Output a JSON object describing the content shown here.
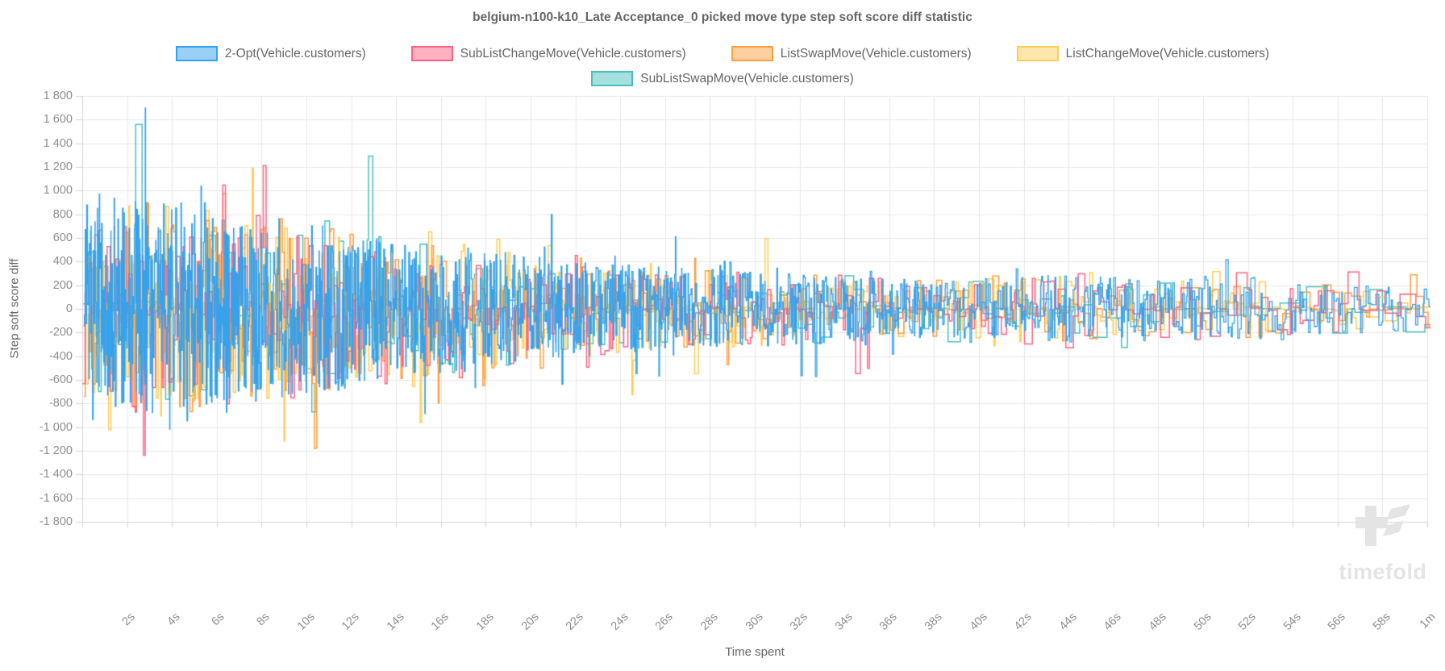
{
  "title": "belgium-n100-k10_Late Acceptance_0 picked move type step soft score diff statistic",
  "axes": {
    "y": {
      "title": "Step soft score diff",
      "ticks": [
        "1 800",
        "1 600",
        "1 400",
        "1 200",
        "1 000",
        "800",
        "600",
        "400",
        "200",
        "0",
        "-200",
        "-400",
        "-600",
        "-800",
        "-1 000",
        "-1 200",
        "-1 400",
        "-1 600",
        "-1 800"
      ],
      "tick_values": [
        1800,
        1600,
        1400,
        1200,
        1000,
        800,
        600,
        400,
        200,
        0,
        -200,
        -400,
        -600,
        -800,
        -1000,
        -1200,
        -1400,
        -1600,
        -1800
      ]
    },
    "x": {
      "title": "Time spent",
      "ticks": [
        "2s",
        "4s",
        "6s",
        "8s",
        "10s",
        "12s",
        "14s",
        "16s",
        "18s",
        "20s",
        "22s",
        "24s",
        "26s",
        "28s",
        "30s",
        "32s",
        "34s",
        "36s",
        "38s",
        "40s",
        "42s",
        "44s",
        "46s",
        "48s",
        "50s",
        "52s",
        "54s",
        "56s",
        "58s",
        "1m"
      ],
      "tick_seconds": [
        2,
        4,
        6,
        8,
        10,
        12,
        14,
        16,
        18,
        20,
        22,
        24,
        26,
        28,
        30,
        32,
        34,
        36,
        38,
        40,
        42,
        44,
        46,
        48,
        50,
        52,
        54,
        56,
        58,
        60
      ]
    }
  },
  "watermark": {
    "text": "timefold"
  },
  "chart_data": {
    "type": "line",
    "stepped": true,
    "grid": true,
    "legend_position": "top",
    "title": "belgium-n100-k10_Late Acceptance_0 picked move type step soft score diff statistic",
    "xlabel": "Time spent",
    "ylabel": "Step soft score diff",
    "xlim_seconds": [
      0,
      60.3
    ],
    "ylim": [
      -1800,
      1800
    ],
    "y_tick_step": 200,
    "series": [
      {
        "label": "2-Opt(Vehicle.customers)",
        "color": "#36A2EB",
        "fill": "#9AD0F5",
        "rate_start": 46,
        "rate_end": 9,
        "seed": 11
      },
      {
        "label": "SubListChangeMove(Vehicle.customers)",
        "color": "#FF6384",
        "fill": "#FFB1C1",
        "rate_start": 11,
        "rate_end": 2.2,
        "seed": 22
      },
      {
        "label": "ListSwapMove(Vehicle.customers)",
        "color": "#FF9F40",
        "fill": "#FFCF9F",
        "rate_start": 13,
        "rate_end": 2.6,
        "seed": 33
      },
      {
        "label": "ListChangeMove(Vehicle.customers)",
        "color": "#FFCD56",
        "fill": "#FFE6AA",
        "rate_start": 14,
        "rate_end": 2.9,
        "seed": 44
      },
      {
        "label": "SubListSwapMove(Vehicle.customers)",
        "color": "#4BC0C0",
        "fill": "#A5DFDF",
        "rate_start": 6,
        "rate_end": 1.4,
        "seed": 55
      }
    ],
    "amplitude_envelope": {
      "t_seconds": [
        0,
        2,
        3,
        6,
        9,
        12,
        15,
        18,
        21,
        24,
        27,
        30,
        33,
        36,
        39,
        42,
        45,
        48,
        51,
        54,
        57,
        60
      ],
      "max_abs": [
        1300,
        1560,
        1800,
        1640,
        1560,
        1460,
        1050,
        1030,
        830,
        760,
        700,
        640,
        620,
        500,
        480,
        560,
        700,
        520,
        630,
        430,
        420,
        380
      ],
      "typical_abs": [
        700,
        800,
        820,
        760,
        700,
        600,
        520,
        470,
        380,
        340,
        310,
        290,
        270,
        235,
        225,
        245,
        260,
        225,
        235,
        195,
        185,
        175
      ]
    }
  }
}
